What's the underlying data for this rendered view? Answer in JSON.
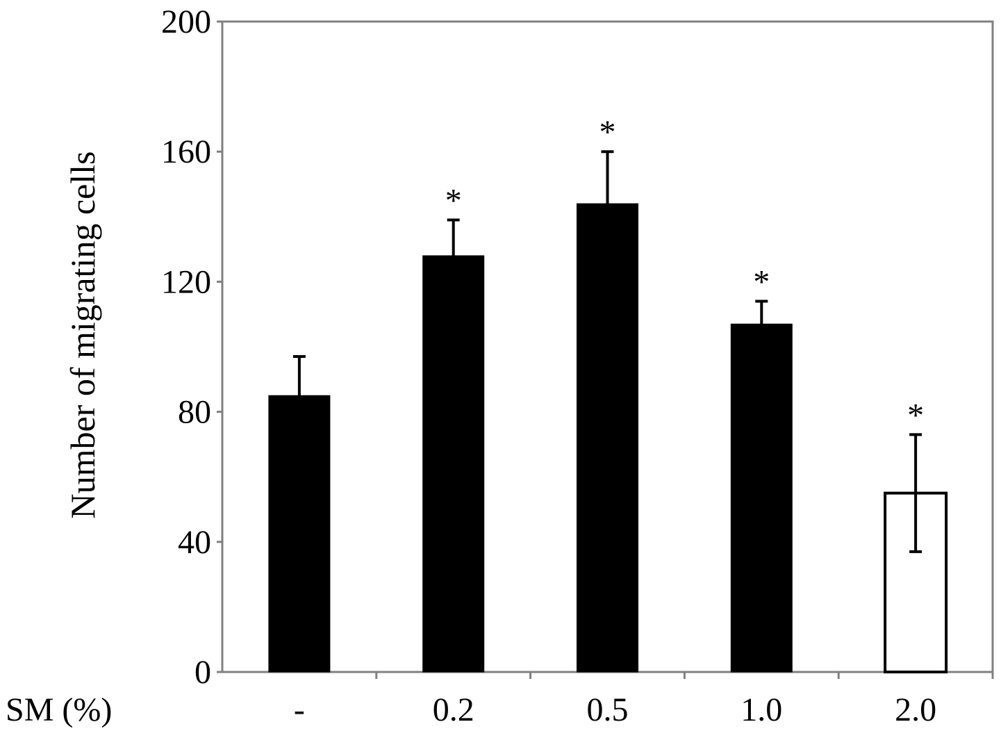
{
  "chart_data": {
    "type": "bar",
    "title": "",
    "xlabel": "SM (%)",
    "ylabel": "Number of migrating cells",
    "categories": [
      "-",
      "0.2",
      "0.5",
      "1.0",
      "2.0"
    ],
    "values": [
      85,
      128,
      144,
      107,
      55
    ],
    "error": [
      12,
      11,
      16,
      7,
      18
    ],
    "significance": [
      "",
      "*",
      "*",
      "*",
      "*"
    ],
    "bar_fill": [
      "#000000",
      "#000000",
      "#000000",
      "#000000",
      "#ffffff"
    ],
    "ylim": [
      0,
      200
    ],
    "yticks": [
      0,
      40,
      80,
      120,
      160,
      200
    ],
    "grid": false,
    "legend": "none"
  },
  "colors": {
    "bar": "#000000",
    "hollow_bar": "#ffffff",
    "frame": "#808080"
  }
}
